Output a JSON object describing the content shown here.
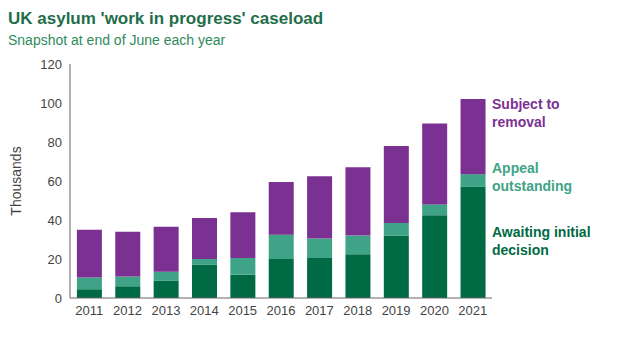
{
  "chart_data": {
    "type": "bar",
    "title": "UK asylum 'work in progress' caseload",
    "subtitle": "Snapshot at end of June each year",
    "y_label": "Thousands",
    "categories": [
      "2011",
      "2012",
      "2013",
      "2014",
      "2015",
      "2016",
      "2017",
      "2018",
      "2019",
      "2020",
      "2021"
    ],
    "series": [
      {
        "name": "Awaiting initial decision",
        "color": "#006a44",
        "values": [
          4.5,
          6,
          9,
          17,
          12,
          20,
          20.5,
          22.5,
          32,
          42.5,
          57
        ]
      },
      {
        "name": "Appeal outstanding",
        "color": "#3fa487",
        "values": [
          6,
          5,
          4.5,
          3,
          8.5,
          12.5,
          10,
          9.5,
          6.5,
          5.5,
          6.5
        ]
      },
      {
        "name": "Subject to removal",
        "color": "#7b3192",
        "values": [
          24.5,
          23,
          23,
          21,
          23.5,
          27,
          32,
          35,
          39.5,
          41.5,
          38.5
        ]
      }
    ],
    "ylim": [
      0,
      120
    ],
    "yticks": [
      0,
      20,
      40,
      60,
      80,
      100,
      120
    ],
    "stacked": true,
    "grid": false,
    "legend": "right"
  }
}
